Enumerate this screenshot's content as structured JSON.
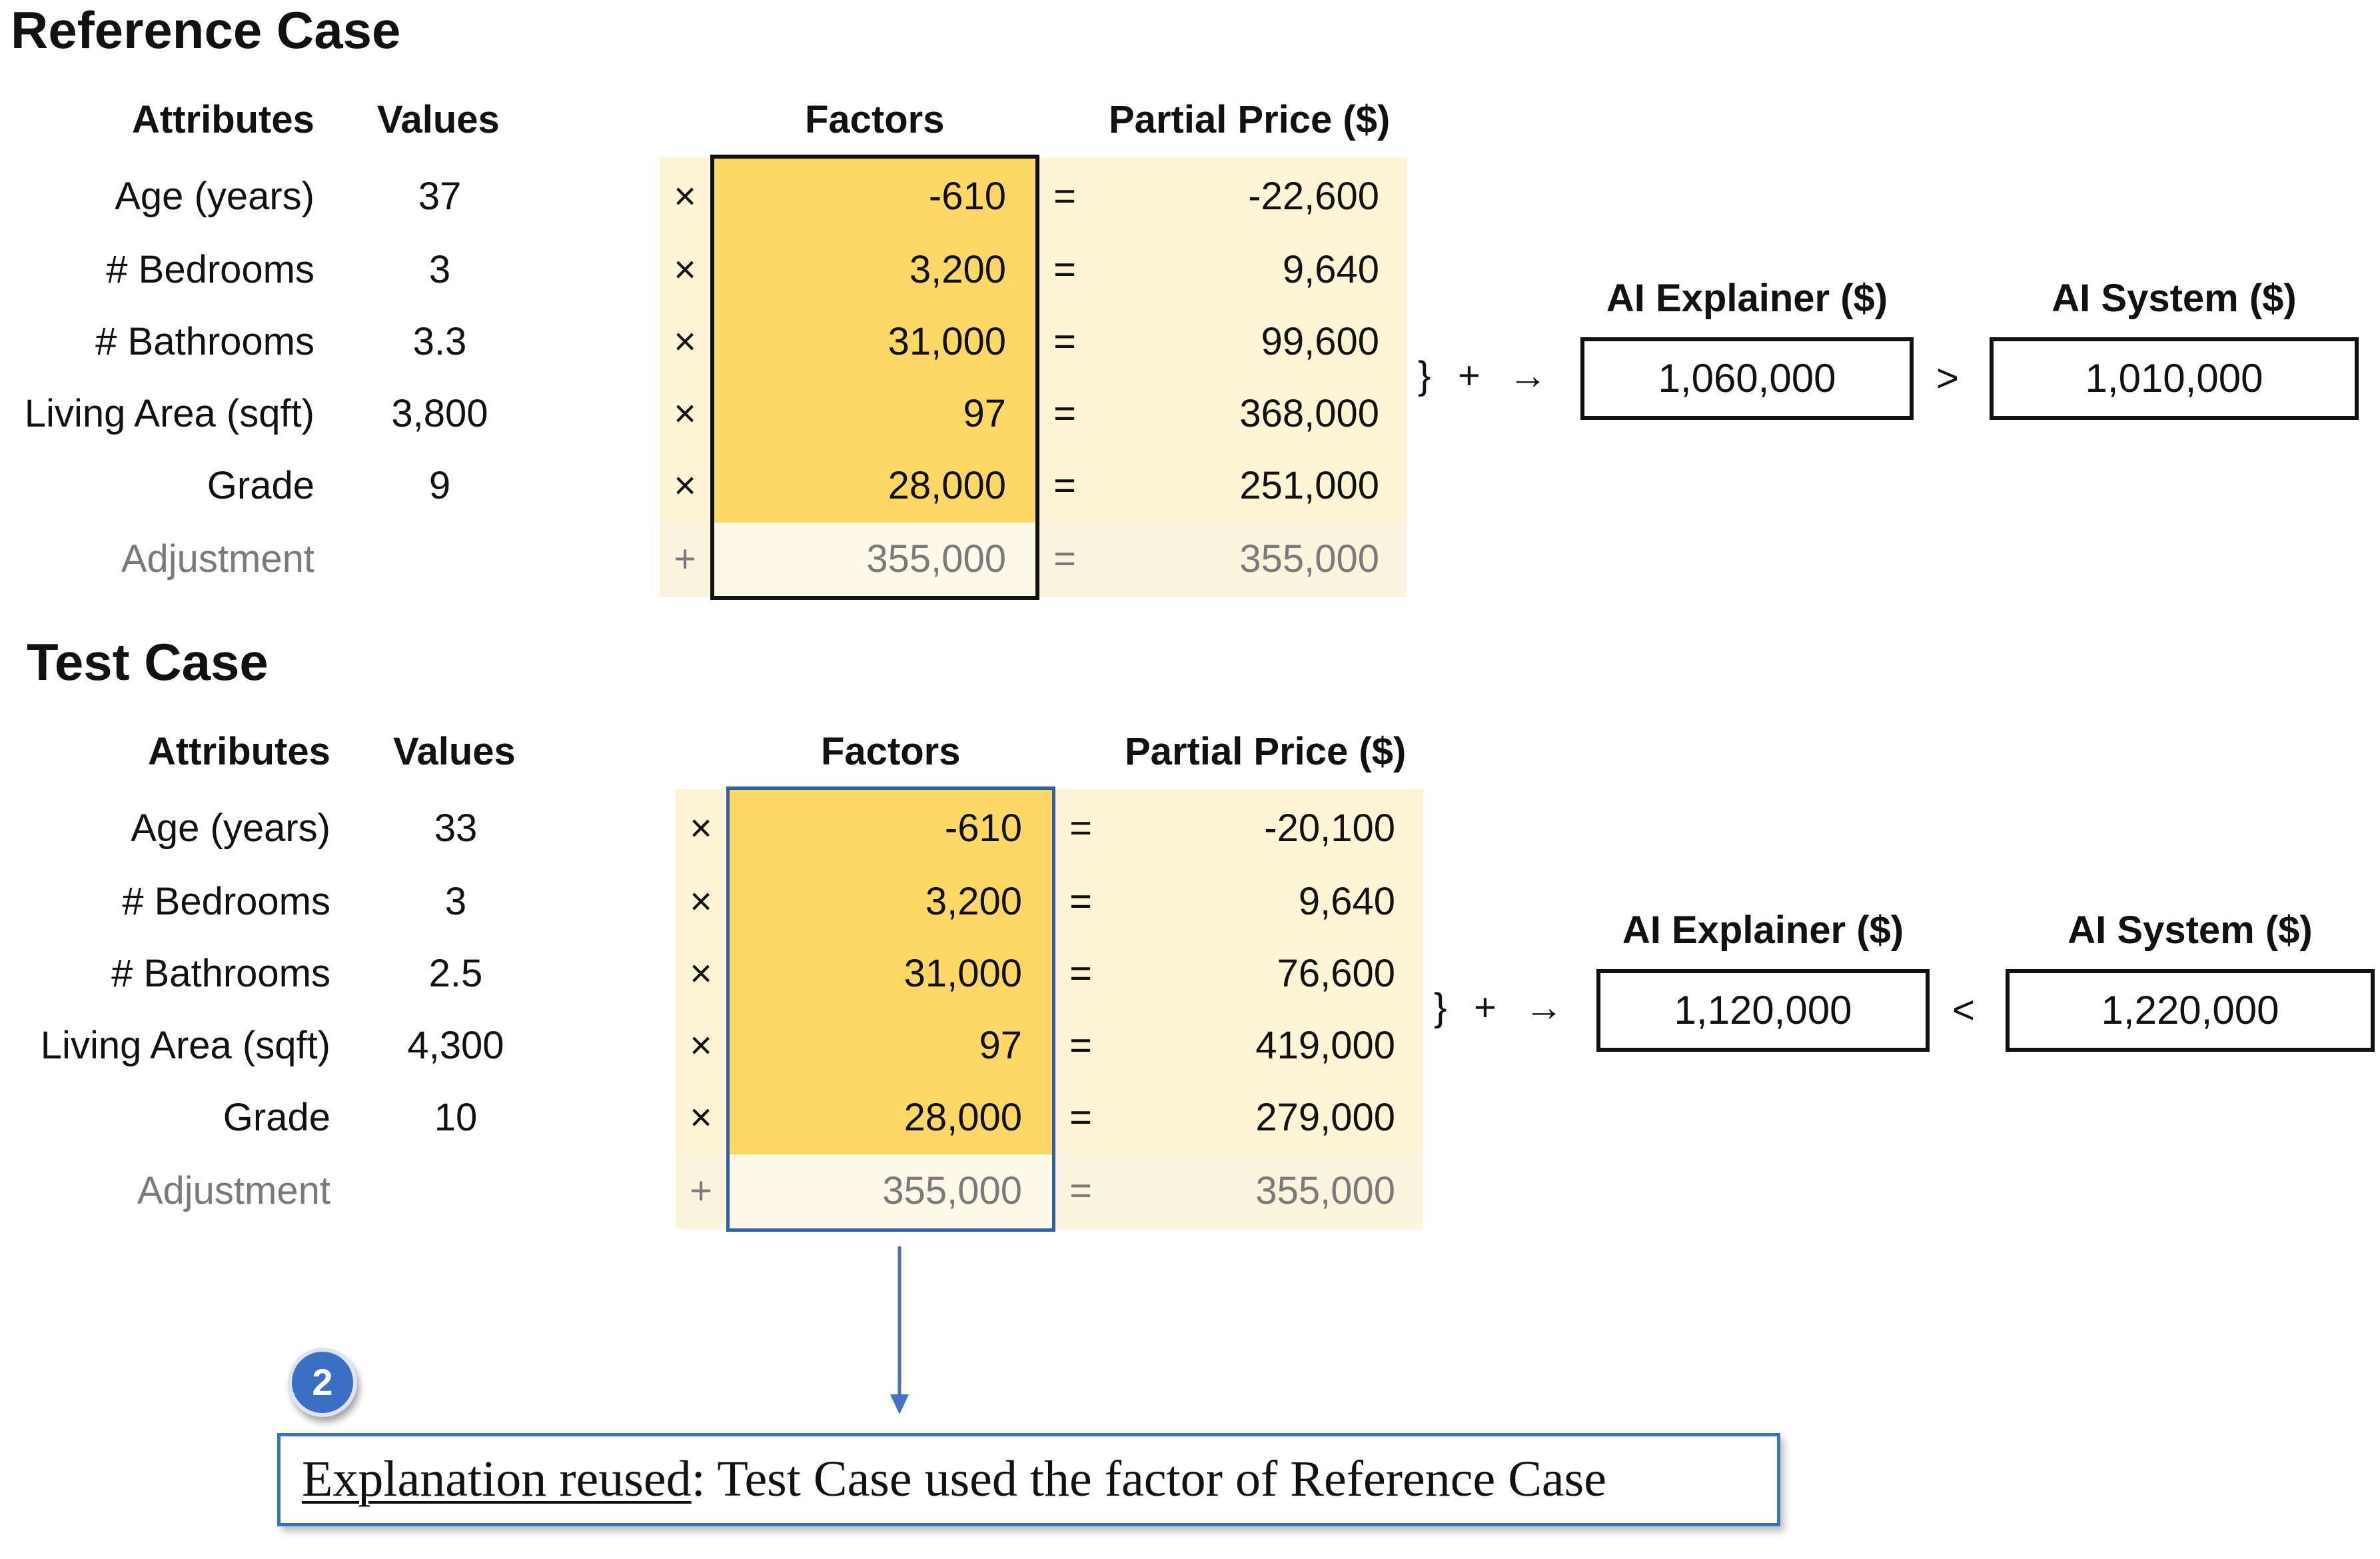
{
  "colors": {
    "factor_highlight": "#fdd866",
    "partial_background": "#fef4d6",
    "reference_frame": "#111111",
    "test_frame": "#2e62a5",
    "note_border": "#3b73c4",
    "badge": "#3a6fc4"
  },
  "headers": {
    "attributes": "Attributes",
    "values": "Values",
    "factors": "Factors",
    "partial_price": "Partial Price ($)",
    "ai_explainer": "AI Explainer ($)",
    "ai_system": "AI System ($)"
  },
  "symbols": {
    "times": "×",
    "equals": "=",
    "plus": "+",
    "sum_brace": "}",
    "sum_plus": "+",
    "arrow": "→"
  },
  "reference": {
    "title": "Reference Case",
    "rows": [
      {
        "attribute": "Age (years)",
        "value": "37",
        "factor": "-610",
        "partial": "-22,600"
      },
      {
        "attribute": "# Bedrooms",
        "value": "3",
        "factor": "3,200",
        "partial": "9,640"
      },
      {
        "attribute": "# Bathrooms",
        "value": "3.3",
        "factor": "31,000",
        "partial": "99,600"
      },
      {
        "attribute": "Living Area (sqft)",
        "value": "3,800",
        "factor": "97",
        "partial": "368,000"
      },
      {
        "attribute": "Grade",
        "value": "9",
        "factor": "28,000",
        "partial": "251,000"
      }
    ],
    "adjustment": {
      "attribute": "Adjustment",
      "factor": "355,000",
      "partial": "355,000"
    },
    "ai_explainer": "1,060,000",
    "comparison": ">",
    "ai_system": "1,010,000"
  },
  "test": {
    "title": "Test Case",
    "rows": [
      {
        "attribute": "Age (years)",
        "value": "33",
        "factor": "-610",
        "partial": "-20,100"
      },
      {
        "attribute": "# Bedrooms",
        "value": "3",
        "factor": "3,200",
        "partial": "9,640"
      },
      {
        "attribute": "# Bathrooms",
        "value": "2.5",
        "factor": "31,000",
        "partial": "76,600"
      },
      {
        "attribute": "Living Area (sqft)",
        "value": "4,300",
        "factor": "97",
        "partial": "419,000"
      },
      {
        "attribute": "Grade",
        "value": "10",
        "factor": "28,000",
        "partial": "279,000"
      }
    ],
    "adjustment": {
      "attribute": "Adjustment",
      "factor": "355,000",
      "partial": "355,000"
    },
    "ai_explainer": "1,120,000",
    "comparison": "<",
    "ai_system": "1,220,000"
  },
  "annotation": {
    "badge_number": "2",
    "label": "Explanation reused",
    "text": ": Test Case used the factor of Reference Case"
  }
}
